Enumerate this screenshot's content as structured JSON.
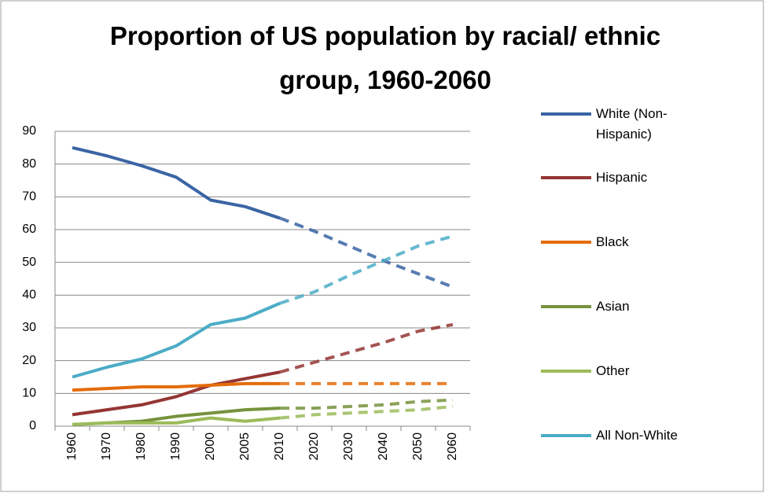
{
  "chart_data": {
    "type": "line",
    "title": "Proportion of US population by racial/ ethnic group, 1960-2060",
    "categories": [
      "1960",
      "1970",
      "1980",
      "1990",
      "2000",
      "2005",
      "2010",
      "2020",
      "2030",
      "2040",
      "2050",
      "2060"
    ],
    "projected": [
      false,
      false,
      false,
      false,
      false,
      false,
      false,
      true,
      true,
      true,
      true,
      true
    ],
    "series": [
      {
        "name": "White (Non-Hispanic)",
        "color": "#3a64a4",
        "values": [
          85,
          82.5,
          79.5,
          76,
          69,
          67,
          63.5,
          59.5,
          55,
          50.5,
          46.5,
          42.5
        ]
      },
      {
        "name": "Hispanic",
        "color": "#943634",
        "values": [
          3.5,
          5,
          6.5,
          9,
          12.5,
          14.5,
          16.5,
          19.5,
          22.5,
          25.5,
          29,
          31
        ]
      },
      {
        "name": "Black",
        "color": "#e46c0a",
        "values": [
          11,
          11.5,
          12,
          12,
          12.5,
          13,
          13,
          13,
          13,
          13,
          13,
          13
        ]
      },
      {
        "name": "Asian",
        "color": "#76923c",
        "values": [
          0.5,
          1,
          1.5,
          3,
          4,
          5,
          5.5,
          5.5,
          6,
          6.5,
          7.5,
          8
        ]
      },
      {
        "name": "Other",
        "color": "#9bbb59",
        "values": [
          0.5,
          1,
          1,
          1,
          2.5,
          1.5,
          2.5,
          3.5,
          4,
          4.5,
          5,
          6
        ]
      },
      {
        "name": "All Non-White",
        "color": "#4bacc6",
        "values": [
          15,
          18,
          20.5,
          24.5,
          31,
          33,
          37.5,
          41,
          46,
          50.5,
          55,
          58
        ]
      }
    ],
    "ylim": [
      0,
      90
    ],
    "yticks": [
      0,
      10,
      20,
      30,
      40,
      50,
      60,
      70,
      80,
      90
    ],
    "grid": true,
    "legend": "right"
  }
}
